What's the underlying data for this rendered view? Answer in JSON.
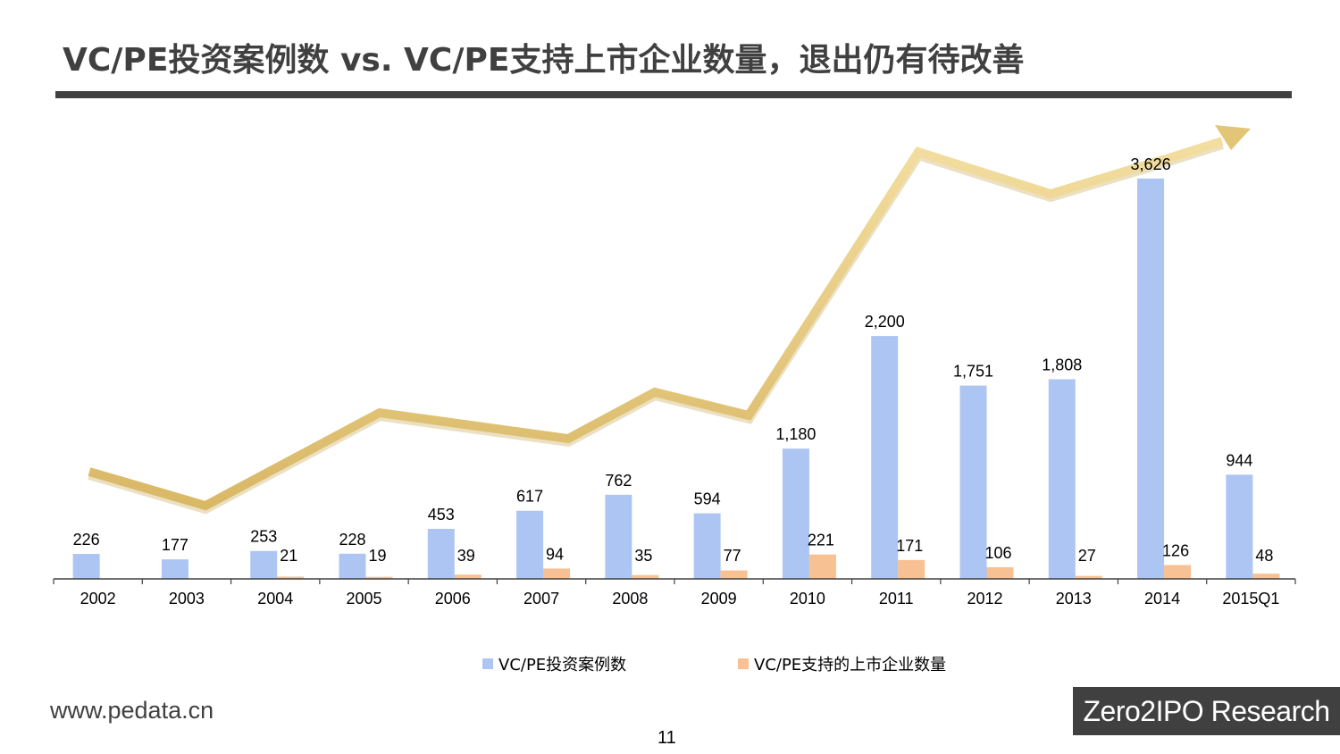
{
  "page": {
    "title": "VC/PE投资案例数 vs. VC/PE支持上市企业数量，退出仍有待改善",
    "website": "www.pedata.cn",
    "page_number": "11",
    "brand": "Zero2IPO Research"
  },
  "colors": {
    "investment_bar": "#adc5f2",
    "listing_bar": "#f8c193",
    "trend_arrow": "#e8cc7f",
    "title_rule": "#404040",
    "axis": "#404040"
  },
  "chart_data": {
    "type": "bar",
    "title": "",
    "xlabel": "",
    "ylabel": "",
    "categories": [
      "2002",
      "2003",
      "2004",
      "2005",
      "2006",
      "2007",
      "2008",
      "2009",
      "2010",
      "2011",
      "2012",
      "2013",
      "2014",
      "2015Q1"
    ],
    "series": [
      {
        "name": "VC/PE投资案例数",
        "values": [
          226,
          177,
          253,
          228,
          453,
          617,
          762,
          594,
          1180,
          2200,
          1751,
          1808,
          3626,
          944
        ],
        "labels": [
          "226",
          "177",
          "253",
          "228",
          "453",
          "617",
          "762",
          "594",
          "1,180",
          "2,200",
          "1,751",
          "1,808",
          "3,626",
          "944"
        ]
      },
      {
        "name": "VC/PE支持的上市企业数量",
        "values": [
          null,
          null,
          21,
          19,
          39,
          94,
          35,
          77,
          221,
          171,
          106,
          27,
          126,
          48
        ],
        "labels": [
          "",
          "",
          "21",
          "19",
          "39",
          "94",
          "35",
          "77",
          "221",
          "171",
          "106",
          "27",
          "126",
          "48"
        ]
      }
    ],
    "ylim": [
      0,
      4000
    ],
    "grid": false,
    "legend": "bottom",
    "annotations": [
      "trend arrow"
    ]
  }
}
